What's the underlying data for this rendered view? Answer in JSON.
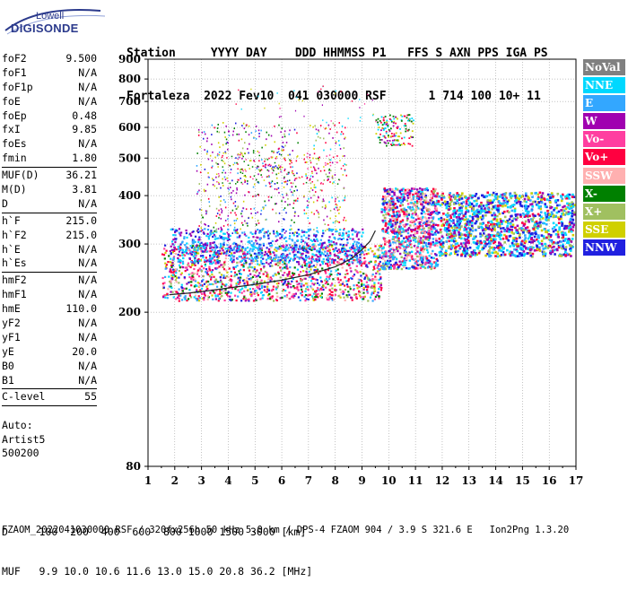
{
  "logo": {
    "brand": "Lowell",
    "product": "DIGISONDE"
  },
  "header": {
    "line1": "Station     YYYY DAY    DDD HHMMSS P1   FFS S AXN PPS IGA PS",
    "line2": "Fortaleza  2022 Fev10  041 030000 RSF      1 714 100 10+ 11"
  },
  "params": [
    {
      "name": "foF2",
      "value": "9.500"
    },
    {
      "name": "foF1",
      "value": "N/A"
    },
    {
      "name": "foF1p",
      "value": "N/A"
    },
    {
      "name": "foE",
      "value": "N/A"
    },
    {
      "name": "foEp",
      "value": "0.48"
    },
    {
      "name": "fxI",
      "value": "9.85"
    },
    {
      "name": "foEs",
      "value": "N/A"
    },
    {
      "name": "fmin",
      "value": "1.80"
    },
    {
      "name": "MUF(D)",
      "value": "36.21"
    },
    {
      "name": "M(D)",
      "value": "3.81"
    },
    {
      "name": "D",
      "value": "N/A"
    },
    {
      "name": "h`F",
      "value": "215.0"
    },
    {
      "name": "h`F2",
      "value": "215.0"
    },
    {
      "name": "h`E",
      "value": "N/A"
    },
    {
      "name": "h`Es",
      "value": "N/A"
    },
    {
      "name": "hmF2",
      "value": "N/A"
    },
    {
      "name": "hmF1",
      "value": "N/A"
    },
    {
      "name": "hmE",
      "value": "110.0"
    },
    {
      "name": "yF2",
      "value": "N/A"
    },
    {
      "name": "yF1",
      "value": "N/A"
    },
    {
      "name": "yE",
      "value": "20.0"
    },
    {
      "name": "B0",
      "value": "N/A"
    },
    {
      "name": "B1",
      "value": "N/A"
    },
    {
      "name": "C-level",
      "value": "55"
    }
  ],
  "auto": {
    "line1": "Auto:",
    "line2": "Artist5",
    "line3": "500200"
  },
  "legend": [
    {
      "label": "NoVal",
      "color": "#808080"
    },
    {
      "label": "NNE",
      "color": "#00d8ff"
    },
    {
      "label": "E",
      "color": "#33a7ff"
    },
    {
      "label": "W",
      "color": "#a000b0"
    },
    {
      "label": "Vo-",
      "color": "#ff3ea0"
    },
    {
      "label": "Vo+",
      "color": "#ff0040"
    },
    {
      "label": "SSW",
      "color": "#ffb0b0"
    },
    {
      "label": "X-",
      "color": "#008000"
    },
    {
      "label": "X+",
      "color": "#a0c060"
    },
    {
      "label": "SSE",
      "color": "#d0d000"
    },
    {
      "label": "NNW",
      "color": "#2020e0"
    }
  ],
  "footer": {
    "line1": "D     100  200  400  600  800 1000 1500 3000 [km]",
    "line2": "MUF   9.9 10.0 10.6 11.6 13.0 15.0 20.8 36.2 [MHz]",
    "line3": "FZAOM_2022041030000.RSF / 320fx256h 50 kHz 5.0 km / DPS-4 FZAOM 904 / 3.9 S 321.6 E   Ion2Png 1.3.20"
  },
  "chart_data": {
    "type": "scatter",
    "title": "",
    "xlabel": "",
    "ylabel": "",
    "xlim": [
      1,
      17
    ],
    "ylim": [
      80,
      900
    ],
    "x_ticks": [
      "1",
      "2",
      "3",
      "4",
      "5",
      "6",
      "7",
      "8",
      "9",
      "10",
      "11",
      "12",
      "13",
      "14",
      "15",
      "16",
      "17"
    ],
    "y_ticks": [
      "80",
      "200",
      "300",
      "400",
      "500",
      "600",
      "700",
      "800",
      "900"
    ],
    "y_scale": "log",
    "trace": {
      "x": [
        1.8,
        2.5,
        3.2,
        4.0,
        5.0,
        6.0,
        7.0,
        8.0,
        8.6,
        9.0,
        9.3,
        9.5
      ],
      "y": [
        222,
        224,
        227,
        231,
        236,
        242,
        250,
        262,
        275,
        290,
        305,
        325
      ]
    },
    "clusters": [
      {
        "xmin": 1.5,
        "xmax": 9.7,
        "ymin": 215,
        "ymax": 300,
        "dominant": "Vo+/W/E"
      },
      {
        "xmin": 1.8,
        "xmax": 9.0,
        "ymin": 270,
        "ymax": 330,
        "dominant": "E"
      },
      {
        "xmin": 2.8,
        "xmax": 6.5,
        "ymin": 330,
        "ymax": 620,
        "dominant": "W/NNW"
      },
      {
        "xmin": 9.7,
        "xmax": 11.8,
        "ymin": 260,
        "ymax": 420,
        "dominant": "Vo+/W"
      },
      {
        "xmin": 11.8,
        "xmax": 16.9,
        "ymin": 270,
        "ymax": 420,
        "dominant": "NNW/E/W"
      },
      {
        "xmin": 9.5,
        "xmax": 10.9,
        "ymin": 540,
        "ymax": 650,
        "dominant": "W/Vo+"
      }
    ]
  }
}
